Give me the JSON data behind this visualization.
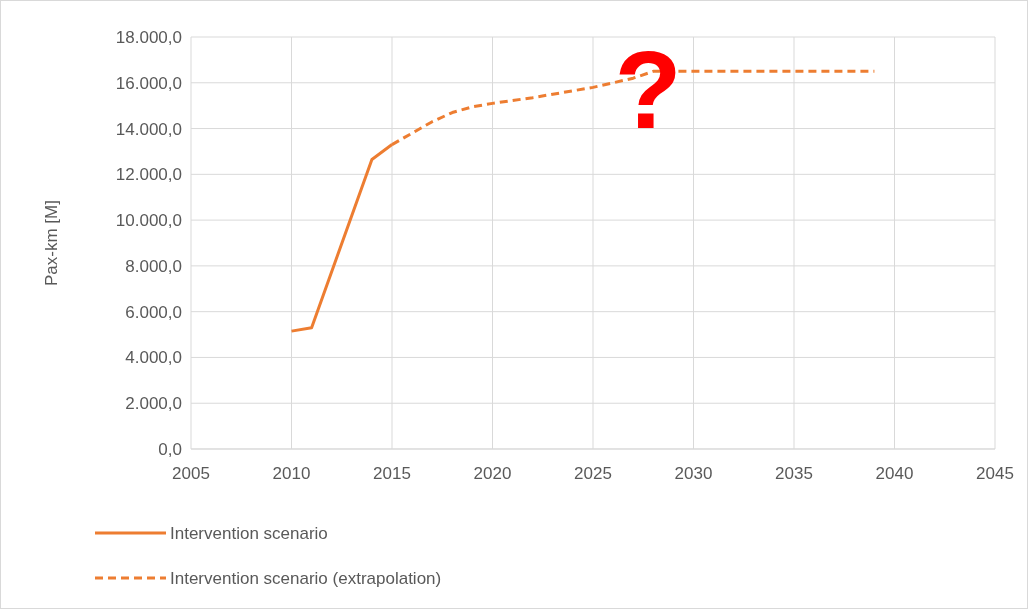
{
  "chart_data": {
    "type": "line",
    "ylabel": "Pax-km [M]",
    "xlim": [
      2005,
      2045
    ],
    "xticks": [
      2005,
      2010,
      2015,
      2020,
      2025,
      2030,
      2035,
      2040,
      2045
    ],
    "ylim": [
      0,
      18000
    ],
    "yticks": [
      {
        "value": 0,
        "label": "0,0"
      },
      {
        "value": 2000,
        "label": "2.000,0"
      },
      {
        "value": 4000,
        "label": "4.000,0"
      },
      {
        "value": 6000,
        "label": "6.000,0"
      },
      {
        "value": 8000,
        "label": "8.000,0"
      },
      {
        "value": 10000,
        "label": "10.000,0"
      },
      {
        "value": 12000,
        "label": "12.000,0"
      },
      {
        "value": 14000,
        "label": "14.000,0"
      },
      {
        "value": 16000,
        "label": "16.000,0"
      },
      {
        "value": 18000,
        "label": "18.000,0"
      }
    ],
    "grid": true,
    "legend": "bottom",
    "marker": "none",
    "annotations": [
      "?"
    ],
    "series": [
      {
        "name": "Intervention scenario",
        "color": "#ed7d31",
        "line_style": "solid",
        "x": [
          2010,
          2011,
          2014,
          2015
        ],
        "values": [
          5150,
          5300,
          12650,
          13300
        ]
      },
      {
        "name": "Intervention scenario (extrapolation)",
        "color": "#ed7d31",
        "line_style": "dashed",
        "x": [
          2015,
          2016,
          2017,
          2018,
          2019,
          2020,
          2022,
          2025,
          2027,
          2028,
          2030,
          2035,
          2039
        ],
        "values": [
          13300,
          13800,
          14300,
          14700,
          14950,
          15100,
          15350,
          15800,
          16200,
          16500,
          16500,
          16500,
          16500
        ]
      }
    ]
  }
}
